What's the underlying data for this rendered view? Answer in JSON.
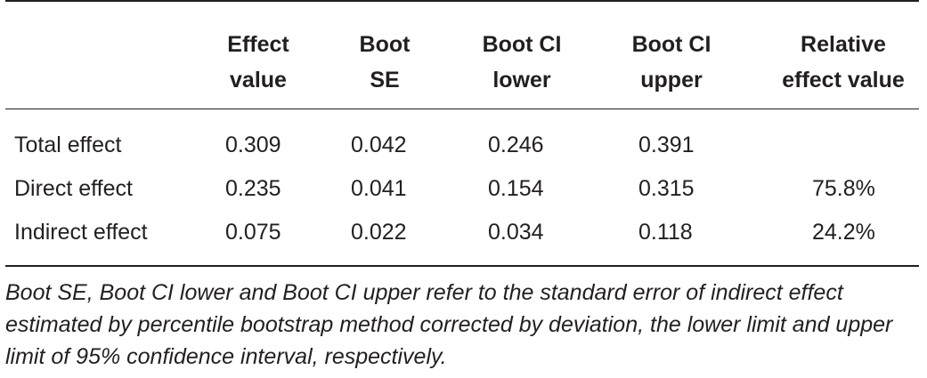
{
  "table": {
    "headers": [
      "",
      "Effect\nvalue",
      "Boot\nSE",
      "Boot CI\nlower",
      "Boot CI\nupper",
      "Relative\neffect value"
    ],
    "rows": [
      {
        "label": "Total effect",
        "effect": "0.309",
        "se": "0.042",
        "lower": "0.246",
        "upper": "0.391",
        "relative": ""
      },
      {
        "label": "Direct effect",
        "effect": "0.235",
        "se": "0.041",
        "lower": "0.154",
        "upper": "0.315",
        "relative": "75.8%"
      },
      {
        "label": "Indirect effect",
        "effect": "0.075",
        "se": "0.022",
        "lower": "0.034",
        "upper": "0.118",
        "relative": "24.2%"
      }
    ]
  },
  "caption": "Boot SE, Boot CI lower and Boot CI upper refer to the standard error of indirect effect estimated by percentile bootstrap method corrected by deviation, the lower limit and upper limit of 95% confidence interval, respectively."
}
